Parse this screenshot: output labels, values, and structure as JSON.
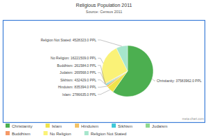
{
  "chart_data": {
    "type": "pie",
    "title": "Religious Population 2011",
    "subtitle": "Source: Census 2011",
    "annotations": [
      "meta-chart.com"
    ],
    "categories": [
      "Christianity",
      "Islam",
      "Hinduism",
      "Sikhism",
      "Judaism",
      "Buddhism",
      "No Religion",
      "Religion Not Stated"
    ],
    "values": [
      37583962,
      2786635,
      835394,
      432429,
      269568,
      261584,
      16221509,
      4528323
    ],
    "value_labels": [
      "37583962.0 PPL",
      "2786635.0 PPL",
      "835394.0 PPL",
      "432429.0 PPL",
      "269568.0 PPL",
      "261584.0 PPL",
      "16221509.0 PPL",
      "4528323.0 PPL"
    ],
    "colors": [
      "#4caf50",
      "#efe34a",
      "#f3c265",
      "#3fc8d8",
      "#8fd88f",
      "#f59a68",
      "#faf277",
      "#a6e6cc"
    ],
    "data_labels": true,
    "legend": "bottom"
  }
}
